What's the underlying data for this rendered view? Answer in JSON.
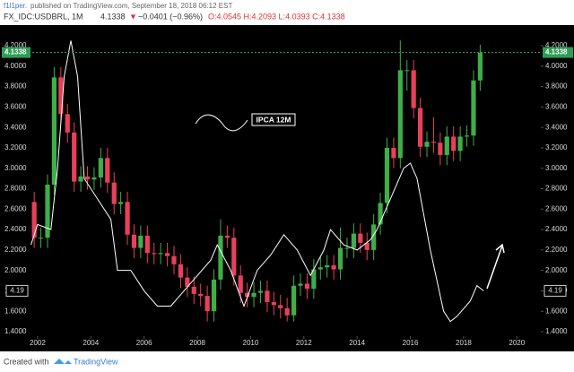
{
  "header": {
    "author": "f1l1per.",
    "published": "published on TradingView.com, September 18, 2018 06:12 EST",
    "symbol": "FX_IDC:USDBRL, 1M",
    "last": "4.1338",
    "arrow": "▼",
    "change": "−0.0401 (−0.96%)",
    "ohlc": "O:4.0545 H:4.2093 L:4.0393 C:4.1338"
  },
  "chart_data": {
    "type": "candlestick",
    "x": [
      2001.75,
      2002,
      2002.25,
      2002.5,
      2002.75,
      2003,
      2003.25,
      2003.5,
      2003.75,
      2004,
      2004.25,
      2004.5,
      2004.75,
      2005,
      2005.25,
      2005.5,
      2005.75,
      2006,
      2006.25,
      2006.5,
      2006.75,
      2007,
      2007.25,
      2007.5,
      2007.75,
      2008,
      2008.25,
      2008.5,
      2008.75,
      2009,
      2009.25,
      2009.5,
      2009.75,
      2010,
      2010.25,
      2010.5,
      2010.75,
      2011,
      2011.25,
      2011.5,
      2011.75,
      2012,
      2012.25,
      2012.5,
      2012.75,
      2013,
      2013.25,
      2013.5,
      2013.75,
      2014,
      2014.25,
      2014.5,
      2014.75,
      2015,
      2015.25,
      2015.5,
      2015.75,
      2016,
      2016.25,
      2016.5,
      2016.75,
      2017,
      2017.25,
      2017.5,
      2017.75,
      2018,
      2018.25,
      2018.5
    ],
    "open": [
      2.67,
      2.32,
      2.32,
      2.84,
      3.89,
      3.53,
      3.35,
      2.87,
      2.92,
      2.89,
      2.91,
      3.1,
      2.86,
      2.65,
      2.67,
      2.35,
      2.22,
      2.34,
      2.17,
      2.16,
      2.17,
      2.14,
      2.06,
      1.93,
      1.84,
      1.77,
      1.75,
      1.6,
      1.91,
      2.34,
      2.32,
      1.95,
      1.78,
      1.74,
      1.78,
      1.8,
      1.69,
      1.66,
      1.63,
      1.56,
      1.85,
      1.87,
      1.82,
      2.01,
      2.03,
      2.05,
      2.01,
      2.22,
      2.22,
      2.36,
      2.27,
      2.2,
      2.45,
      2.66,
      3.2,
      3.1,
      3.96,
      3.96,
      3.59,
      3.21,
      3.26,
      3.25,
      3.13,
      3.31,
      3.17,
      3.31,
      3.32,
      3.86
    ],
    "high": [
      2.77,
      2.42,
      2.94,
      3.99,
      3.99,
      3.63,
      3.45,
      3.02,
      3.02,
      3.01,
      3.2,
      3.2,
      2.96,
      2.77,
      2.77,
      2.45,
      2.44,
      2.44,
      2.27,
      2.27,
      2.27,
      2.24,
      2.16,
      2.03,
      1.94,
      1.87,
      1.85,
      2.01,
      2.5,
      2.44,
      2.42,
      2.05,
      1.88,
      1.88,
      1.9,
      1.9,
      1.79,
      1.76,
      1.73,
      1.95,
      1.97,
      1.97,
      2.11,
      2.13,
      2.15,
      2.15,
      2.42,
      2.32,
      2.46,
      2.46,
      2.37,
      2.55,
      2.76,
      3.3,
      3.3,
      4.25,
      4.06,
      4.06,
      3.69,
      3.36,
      3.5,
      3.35,
      3.41,
      3.41,
      3.41,
      3.42,
      3.96,
      4.21
    ],
    "low": [
      2.22,
      2.22,
      2.22,
      2.74,
      3.43,
      3.25,
      2.77,
      2.77,
      2.79,
      2.79,
      2.81,
      2.76,
      2.55,
      2.55,
      2.25,
      2.12,
      2.12,
      2.07,
      2.06,
      2.06,
      2.04,
      1.96,
      1.83,
      1.74,
      1.67,
      1.65,
      1.5,
      1.5,
      1.81,
      2.22,
      1.85,
      1.68,
      1.64,
      1.64,
      1.68,
      1.59,
      1.56,
      1.53,
      1.5,
      1.5,
      1.75,
      1.72,
      1.72,
      1.91,
      1.93,
      1.91,
      1.91,
      2.12,
      2.12,
      2.17,
      2.1,
      2.1,
      2.35,
      2.56,
      3.0,
      3.0,
      3.76,
      3.49,
      3.11,
      3.11,
      3.15,
      3.03,
      3.03,
      3.07,
      3.07,
      3.21,
      3.22,
      3.76
    ],
    "close": [
      2.32,
      2.32,
      2.84,
      3.89,
      3.53,
      3.35,
      2.87,
      2.92,
      2.89,
      2.91,
      3.1,
      2.86,
      2.65,
      2.67,
      2.35,
      2.22,
      2.34,
      2.17,
      2.16,
      2.17,
      2.14,
      2.06,
      1.93,
      1.84,
      1.77,
      1.75,
      1.6,
      1.91,
      2.34,
      2.32,
      1.95,
      1.78,
      1.74,
      1.78,
      1.8,
      1.69,
      1.66,
      1.63,
      1.56,
      1.85,
      1.87,
      1.82,
      2.01,
      2.03,
      2.05,
      2.01,
      2.22,
      2.22,
      2.36,
      2.27,
      2.2,
      2.45,
      2.66,
      3.2,
      3.1,
      3.96,
      3.96,
      3.59,
      3.21,
      3.26,
      3.25,
      3.13,
      3.31,
      3.17,
      3.31,
      3.32,
      3.86,
      4.13
    ],
    "up_color": "#3fae49",
    "down_color": "#e8405a",
    "series": [
      {
        "name": "IPCA 12M",
        "color": "#ffffff",
        "x": [
          2001.75,
          2002,
          2002.5,
          2002.75,
          2003,
          2003.25,
          2003.5,
          2003.75,
          2004.25,
          2004.75,
          2005,
          2005.5,
          2006,
          2006.5,
          2007,
          2007.5,
          2008,
          2008.5,
          2008.75,
          2009.25,
          2009.75,
          2010.25,
          2010.75,
          2011.25,
          2011.75,
          2012.25,
          2012.75,
          2013,
          2013.5,
          2014,
          2014.5,
          2014.75,
          2015.25,
          2015.75,
          2016,
          2016.25,
          2016.75,
          2017.25,
          2017.5,
          2017.75,
          2018.25,
          2018.5,
          2018.75
        ],
        "values": [
          2.25,
          2.45,
          2.4,
          3.0,
          3.9,
          4.25,
          3.9,
          2.9,
          2.7,
          2.5,
          2.0,
          2.0,
          1.8,
          1.65,
          1.65,
          1.8,
          1.95,
          2.1,
          2.25,
          2.0,
          1.65,
          2.0,
          2.15,
          2.35,
          2.2,
          1.95,
          2.2,
          2.4,
          2.25,
          2.2,
          2.3,
          2.4,
          2.7,
          3.0,
          3.05,
          2.9,
          2.2,
          1.6,
          1.5,
          1.55,
          1.7,
          1.85,
          1.8
        ]
      }
    ],
    "ipca_label": "4.19",
    "last_price": 4.1338,
    "last_color": "#2e9e55",
    "xlim": [
      2001.8,
      2020.9
    ],
    "xticks": [
      2002,
      2004,
      2006,
      2008,
      2010,
      2012,
      2014,
      2016,
      2018,
      2020
    ],
    "ylim": [
      1.4,
      4.2
    ],
    "yticks": [
      {
        "value": 1.4,
        "label": "1.4000"
      },
      {
        "value": 1.6,
        "label": "1.6000"
      },
      {
        "value": 1.8,
        "label": "1.8000"
      },
      {
        "value": 2.0,
        "label": "2.0000"
      },
      {
        "value": 2.2,
        "label": "2.2000"
      },
      {
        "value": 2.4,
        "label": "2.4000"
      },
      {
        "value": 2.6,
        "label": "2.6000"
      },
      {
        "value": 2.8,
        "label": "2.8000"
      },
      {
        "value": 3.0,
        "label": "3.0000"
      },
      {
        "value": 3.2,
        "label": "3.2000"
      },
      {
        "value": 3.4,
        "label": "3.4000"
      },
      {
        "value": 3.6,
        "label": "3.6000"
      },
      {
        "value": 3.8,
        "label": "3.8000"
      },
      {
        "value": 4.0,
        "label": "4.0000"
      },
      {
        "value": 4.2,
        "label": "4.2000"
      }
    ]
  },
  "footer": {
    "created": "Created with",
    "brand": "TradingView"
  }
}
